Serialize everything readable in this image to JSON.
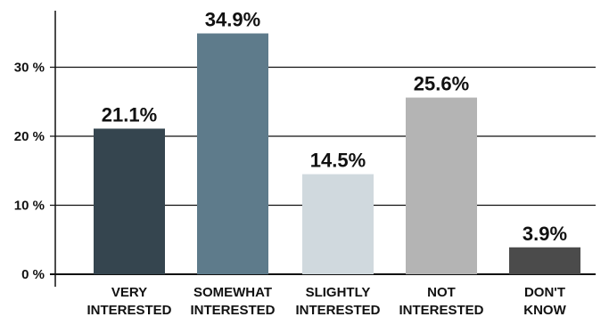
{
  "chart_data": {
    "type": "bar",
    "title": "",
    "xlabel": "",
    "ylabel": "",
    "ylim": [
      0,
      37.5
    ],
    "yticks": [
      0,
      10,
      20,
      30
    ],
    "ytick_labels": [
      "0 %",
      "10 %",
      "20 %",
      "30 %"
    ],
    "grid": true,
    "categories": [
      [
        "VERY",
        "INTERESTED"
      ],
      [
        "SOMEWHAT",
        "INTERESTED"
      ],
      [
        "SLIGHTLY",
        "INTERESTED"
      ],
      [
        "NOT",
        "INTERESTED"
      ],
      [
        "DON'T",
        "KNOW"
      ]
    ],
    "values": [
      21.1,
      34.9,
      14.5,
      25.6,
      3.9
    ],
    "value_labels": [
      "21.1%",
      "34.9%",
      "14.5%",
      "25.6%",
      "3.9%"
    ],
    "colors": [
      "#35454f",
      "#5e7b8b",
      "#d0d9de",
      "#b4b4b4",
      "#4b4b4b"
    ],
    "gridline_color": "#111111",
    "text_color": "#111111"
  }
}
